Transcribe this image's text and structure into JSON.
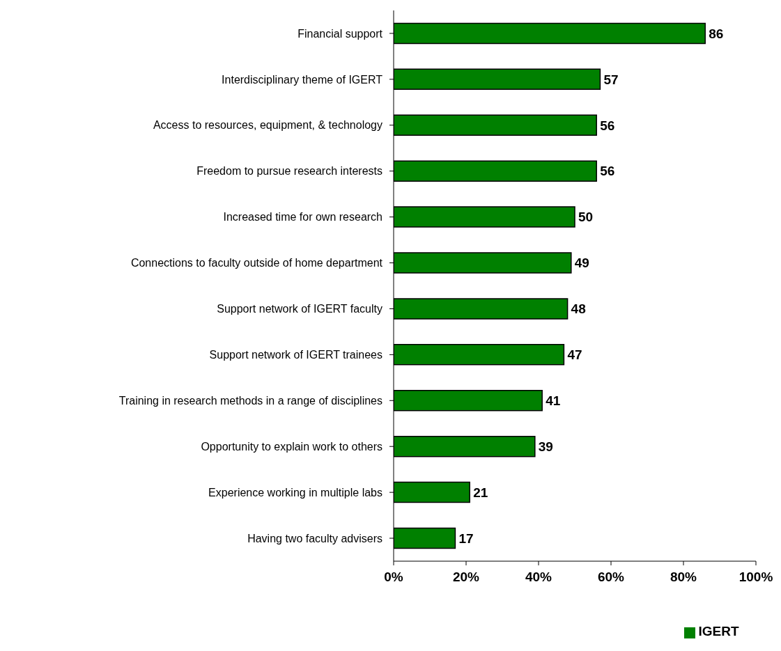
{
  "chart_data": {
    "type": "bar",
    "orientation": "horizontal",
    "categories": [
      "Financial support",
      "Interdisciplinary theme of IGERT",
      "Access to resources, equipment, & technology",
      "Freedom to pursue research interests",
      "Increased time for own research",
      "Connections to faculty outside of home department",
      "Support network of IGERT faculty",
      "Support network of IGERT trainees",
      "Training in research methods in a range of disciplines",
      "Opportunity to explain work to others",
      "Experience working in multiple labs",
      "Having two faculty advisers"
    ],
    "series": [
      {
        "name": "IGERT",
        "color": "#008000",
        "values": [
          86,
          57,
          56,
          56,
          50,
          49,
          48,
          47,
          41,
          39,
          21,
          17
        ]
      }
    ],
    "xlim": [
      0,
      100
    ],
    "xticks": [
      {
        "value": 0,
        "label": "0%"
      },
      {
        "value": 20,
        "label": "20%"
      },
      {
        "value": 40,
        "label": "40%"
      },
      {
        "value": 60,
        "label": "60%"
      },
      {
        "value": 80,
        "label": "80%"
      },
      {
        "value": 100,
        "label": "100%"
      }
    ],
    "data_labels": true,
    "legend": "bottom"
  }
}
